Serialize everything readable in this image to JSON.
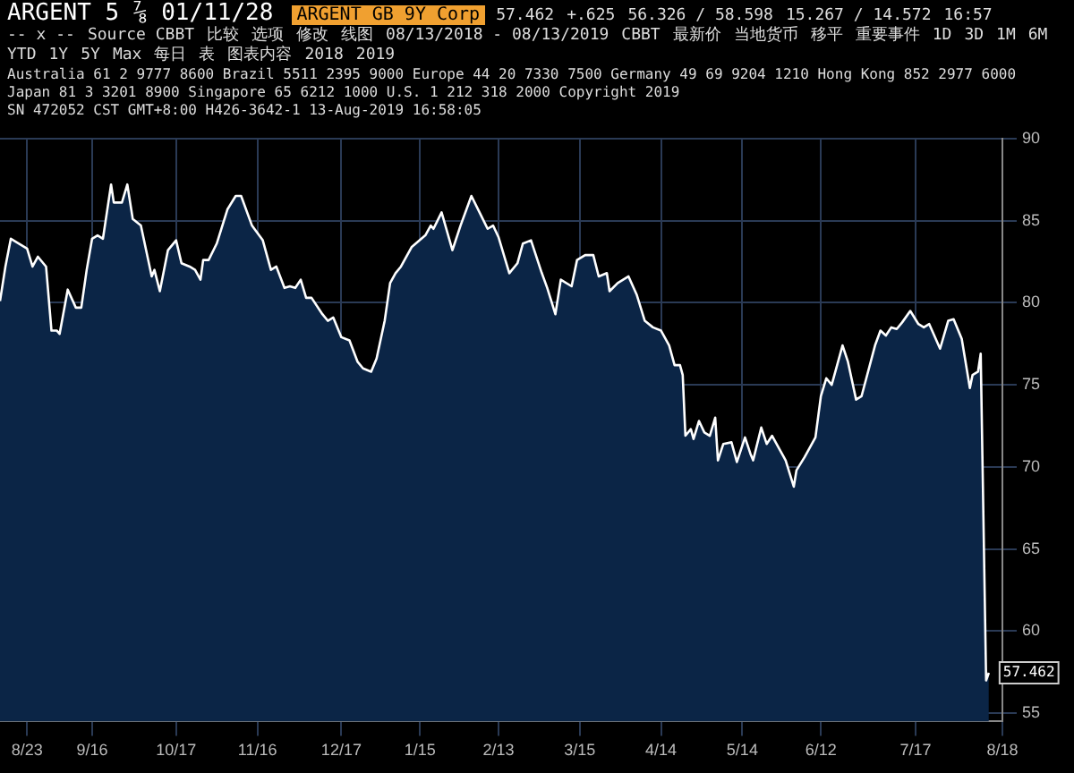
{
  "chart_data": {
    "type": "area",
    "title": "ARGENT 5 ⅞ 01/11/28",
    "subtitle": "ARGENT GB 9Y Corp",
    "annotations": [
      "57.462",
      "+.625",
      "56.326 / 58.598",
      "15.267 / 14.572",
      "16:57",
      "-- x --",
      "Source CBBT",
      "比较",
      "选项",
      "修改",
      "线图",
      "08/13/2018 - 08/13/2019",
      "CBBT",
      "最新价",
      "当地货币",
      "移平",
      "重要事件",
      "1D",
      "3D",
      "1M",
      "6M",
      "YTD",
      "1Y",
      "5Y",
      "Max",
      "每日",
      "表",
      "图表内容",
      "2018",
      "2019",
      "Australia 61 2 9777 8600 Brazil 5511 2395 9000 Europe 44 20 7330 7500 Germany 49 69 9204 1210 Hong Kong 852 2977 6000",
      "Japan 81 3 3201 8900 Singapore 65 6212 1000 U.S. 1 212 318 2000 Copyright 2019",
      "SN 472052 CST GMT+8:00 H426-3642-1 13-Aug-2019 16:58:05",
      {
        "text": "57.462",
        "x": "2019-08-13",
        "y": 57.462
      }
    ],
    "x": [
      "2018-08-13",
      "2018-08-15",
      "2018-08-17",
      "2018-08-20",
      "2018-08-23",
      "2018-08-25",
      "2018-08-27",
      "2018-08-30",
      "2018-09-01",
      "2018-09-03",
      "2018-09-04",
      "2018-09-07",
      "2018-09-10",
      "2018-09-12",
      "2018-09-14",
      "2018-09-16",
      "2018-09-18",
      "2018-09-20",
      "2018-09-23",
      "2018-09-24",
      "2018-09-27",
      "2018-09-29",
      "2018-10-01",
      "2018-10-04",
      "2018-10-08",
      "2018-10-09",
      "2018-10-11",
      "2018-10-14",
      "2018-10-17",
      "2018-10-19",
      "2018-10-22",
      "2018-10-24",
      "2018-10-26",
      "2018-10-27",
      "2018-10-29",
      "2018-11-01",
      "2018-11-05",
      "2018-11-08",
      "2018-11-10",
      "2018-11-14",
      "2018-11-18",
      "2018-11-21",
      "2018-11-23",
      "2018-11-26",
      "2018-11-28",
      "2018-11-30",
      "2018-12-02",
      "2018-12-04",
      "2018-12-06",
      "2018-12-10",
      "2018-12-12",
      "2018-12-14",
      "2018-12-17",
      "2018-12-20",
      "2018-12-23",
      "2018-12-25",
      "2018-12-28",
      "2018-12-30",
      "2019-01-02",
      "2019-01-04",
      "2019-01-06",
      "2019-01-08",
      "2019-01-12",
      "2019-01-17",
      "2019-01-19",
      "2019-01-20",
      "2019-01-23",
      "2019-01-27",
      "2019-01-30",
      "2019-02-03",
      "2019-02-06",
      "2019-02-09",
      "2019-02-11",
      "2019-02-13",
      "2019-02-17",
      "2019-02-20",
      "2019-02-22",
      "2019-02-25",
      "2019-03-01",
      "2019-03-03",
      "2019-03-06",
      "2019-03-08",
      "2019-03-12",
      "2019-03-14",
      "2019-03-17",
      "2019-03-20",
      "2019-03-22",
      "2019-03-25",
      "2019-03-26",
      "2019-03-29",
      "2019-04-02",
      "2019-04-05",
      "2019-04-08",
      "2019-04-11",
      "2019-04-14",
      "2019-04-17",
      "2019-04-19",
      "2019-04-21",
      "2019-04-22",
      "2019-04-23",
      "2019-04-25",
      "2019-04-26",
      "2019-04-28",
      "2019-04-30",
      "2019-05-02",
      "2019-05-04",
      "2019-05-05",
      "2019-05-07",
      "2019-05-10",
      "2019-05-12",
      "2019-05-15",
      "2019-05-17",
      "2019-05-18",
      "2019-05-21",
      "2019-05-23",
      "2019-05-25",
      "2019-05-28",
      "2019-05-30",
      "2019-06-02",
      "2019-06-03",
      "2019-06-06",
      "2019-06-10",
      "2019-06-12",
      "2019-06-14",
      "2019-06-16",
      "2019-06-20",
      "2019-06-22",
      "2019-06-25",
      "2019-06-27",
      "2019-07-02",
      "2019-07-04",
      "2019-07-06",
      "2019-07-08",
      "2019-07-10",
      "2019-07-12",
      "2019-07-15",
      "2019-07-18",
      "2019-07-20",
      "2019-07-22",
      "2019-07-26",
      "2019-07-29",
      "2019-07-31",
      "2019-08-03",
      "2019-08-06",
      "2019-08-07",
      "2019-08-09",
      "2019-08-10",
      "2019-08-12",
      "2019-08-13"
    ],
    "series": [
      {
        "color": "#ffffff",
        "values": [
          80.1,
          82.2,
          83.9,
          83.6,
          83.3,
          82.2,
          82.8,
          82.2,
          78.3,
          78.3,
          78.1,
          80.8,
          79.7,
          79.7,
          82.0,
          83.9,
          84.1,
          83.9,
          87.2,
          86.1,
          86.1,
          87.2,
          85.1,
          84.7,
          81.6,
          82.0,
          80.7,
          83.2,
          83.8,
          82.4,
          82.2,
          82.0,
          81.4,
          82.6,
          82.6,
          83.6,
          85.7,
          86.5,
          86.5,
          84.7,
          83.8,
          82.0,
          82.2,
          80.9,
          81.0,
          80.9,
          81.4,
          80.3,
          80.3,
          79.3,
          78.9,
          79.1,
          77.9,
          77.7,
          76.4,
          76.0,
          75.8,
          76.6,
          78.9,
          81.2,
          81.8,
          82.2,
          83.4,
          84.1,
          84.7,
          84.5,
          85.5,
          83.2,
          84.7,
          86.5,
          85.5,
          84.5,
          84.7,
          84.0,
          81.8,
          82.4,
          83.6,
          83.8,
          81.8,
          80.9,
          79.3,
          81.4,
          81.0,
          82.6,
          82.9,
          82.9,
          81.6,
          81.8,
          80.7,
          81.2,
          81.6,
          80.5,
          78.9,
          78.5,
          78.3,
          77.4,
          76.2,
          76.2,
          75.6,
          71.9,
          72.3,
          71.7,
          72.8,
          72.1,
          71.9,
          73.0,
          70.4,
          71.4,
          71.5,
          70.3,
          71.8,
          70.8,
          70.4,
          72.4,
          71.4,
          71.9,
          71.0,
          70.4,
          68.8,
          69.8,
          70.6,
          71.8,
          74.3,
          75.4,
          75.0,
          77.4,
          76.4,
          74.1,
          74.3,
          77.4,
          78.3,
          78.0,
          78.5,
          78.4,
          78.8,
          79.5,
          78.7,
          78.5,
          78.7,
          77.2,
          78.9,
          79.0,
          77.8,
          74.8,
          75.6,
          75.8,
          76.9,
          57.0,
          57.462
        ]
      }
    ],
    "xlim": [
      "2018-08-13",
      "2019-08-18"
    ],
    "xticks": [
      {
        "value": "2018-08-23",
        "label": "8/23"
      },
      {
        "value": "2018-09-16",
        "label": "9/16"
      },
      {
        "value": "2018-10-17",
        "label": "10/17"
      },
      {
        "value": "2018-11-16",
        "label": "11/16"
      },
      {
        "value": "2018-12-17",
        "label": "12/17"
      },
      {
        "value": "2019-01-15",
        "label": "1/15"
      },
      {
        "value": "2019-02-13",
        "label": "2/13"
      },
      {
        "value": "2019-03-15",
        "label": "3/15"
      },
      {
        "value": "2019-04-14",
        "label": "4/14"
      },
      {
        "value": "2019-05-14",
        "label": "5/14"
      },
      {
        "value": "2019-06-12",
        "label": "6/12"
      },
      {
        "value": "2019-07-17",
        "label": "7/17"
      },
      {
        "value": "2019-08-18",
        "label": "8/18"
      }
    ],
    "ylim": [
      54.5,
      90
    ],
    "yticks": [
      55,
      60,
      65,
      70,
      75,
      80,
      85,
      90
    ],
    "grid": true,
    "legend": false,
    "marker": "none",
    "line_style": "solid"
  }
}
